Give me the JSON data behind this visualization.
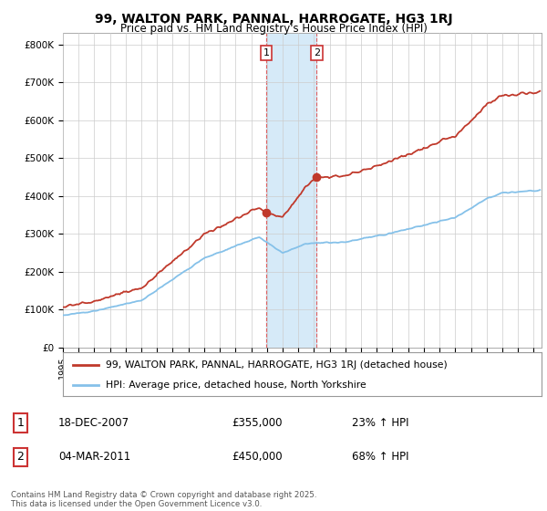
{
  "title": "99, WALTON PARK, PANNAL, HARROGATE, HG3 1RJ",
  "subtitle": "Price paid vs. HM Land Registry's House Price Index (HPI)",
  "ylabel_ticks": [
    "£0",
    "£100K",
    "£200K",
    "£300K",
    "£400K",
    "£500K",
    "£600K",
    "£700K",
    "£800K"
  ],
  "ytick_values": [
    0,
    100000,
    200000,
    300000,
    400000,
    500000,
    600000,
    700000,
    800000
  ],
  "ylim": [
    0,
    830000
  ],
  "xlim_start": 1995.0,
  "xlim_end": 2025.5,
  "purchase1_date": 2007.96,
  "purchase1_price": 355000,
  "purchase2_date": 2011.17,
  "purchase2_price": 450000,
  "hpi_color": "#85c1e9",
  "price_color": "#c0392b",
  "shade_color": "#d6eaf8",
  "legend_line1": "99, WALTON PARK, PANNAL, HARROGATE, HG3 1RJ (detached house)",
  "legend_line2": "HPI: Average price, detached house, North Yorkshire",
  "table_row1_num": "1",
  "table_row1_date": "18-DEC-2007",
  "table_row1_price": "£355,000",
  "table_row1_hpi": "23% ↑ HPI",
  "table_row2_num": "2",
  "table_row2_date": "04-MAR-2011",
  "table_row2_price": "£450,000",
  "table_row2_hpi": "68% ↑ HPI",
  "footnote": "Contains HM Land Registry data © Crown copyright and database right 2025.\nThis data is licensed under the Open Government Licence v3.0.",
  "background_color": "#ffffff",
  "grid_color": "#cccccc",
  "border_color": "#cc3333"
}
